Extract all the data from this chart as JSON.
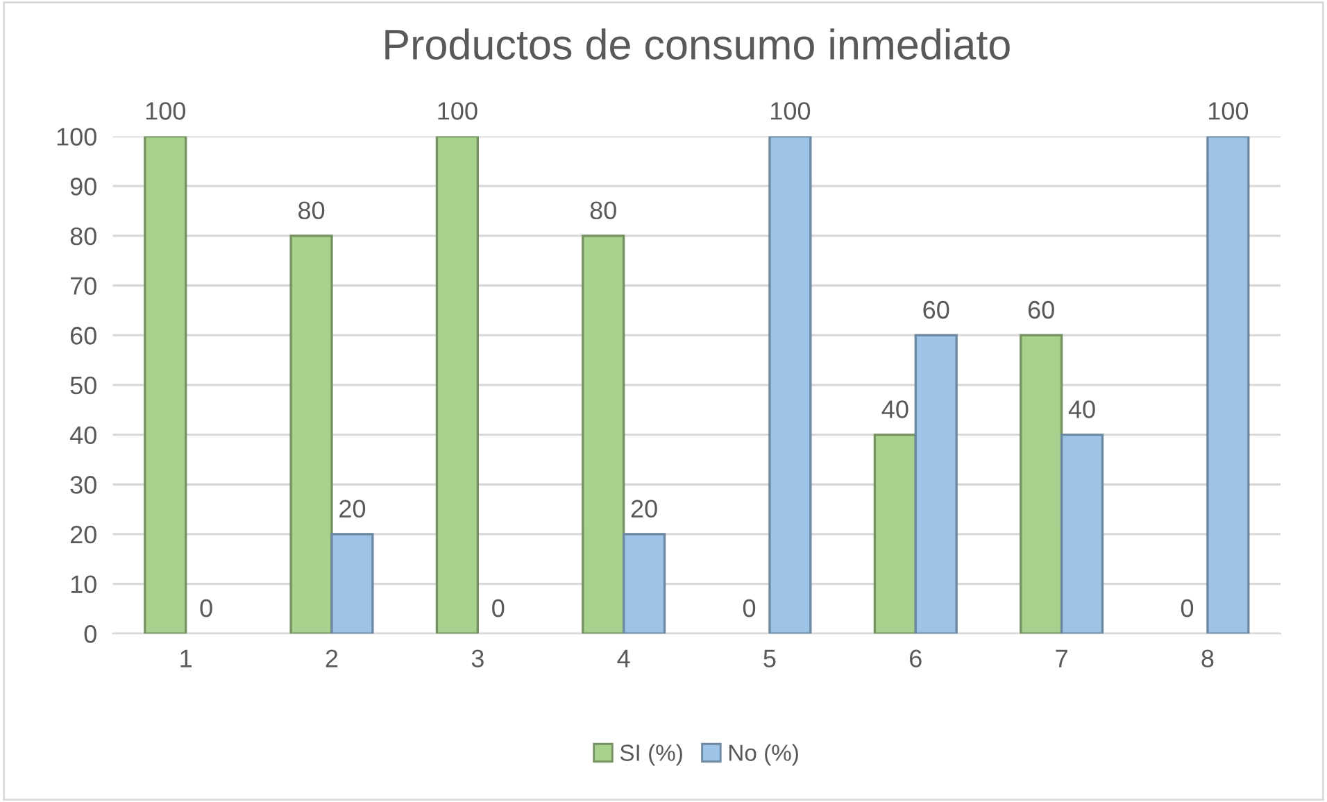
{
  "chart_data": {
    "type": "bar",
    "title": "Productos de consumo inmediato",
    "categories": [
      "1",
      "2",
      "3",
      "4",
      "5",
      "6",
      "7",
      "8"
    ],
    "series": [
      {
        "name": "SI (%)",
        "color": "#a9d18e",
        "values": [
          100,
          80,
          100,
          80,
          0,
          40,
          60,
          0
        ]
      },
      {
        "name": "No (%)",
        "color": "#9dc3e6",
        "values": [
          0,
          20,
          0,
          20,
          100,
          60,
          40,
          100
        ]
      }
    ],
    "ylim": [
      0,
      100
    ],
    "yticks": [
      0,
      10,
      20,
      30,
      40,
      50,
      60,
      70,
      80,
      90,
      100
    ],
    "grid": "y",
    "legend": "bottom",
    "data_labels": true
  }
}
